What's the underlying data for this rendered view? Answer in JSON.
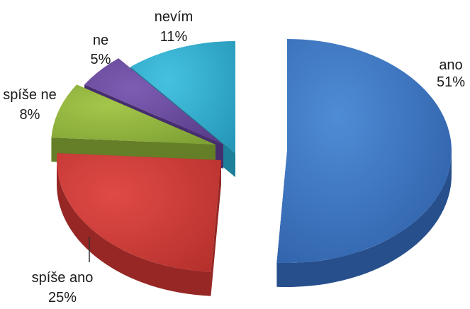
{
  "chart_data": {
    "type": "pie",
    "title": "",
    "series": [
      {
        "values": [
          51,
          25,
          8,
          5,
          11
        ]
      }
    ],
    "categories": [
      "ano",
      "spíše ano",
      "spíše ne",
      "ne",
      "nevím"
    ],
    "value_labels": [
      "51%",
      "25%",
      "8%",
      "5%",
      "11%"
    ],
    "colors": {
      "ano": "#3f75c0",
      "spíše ano": "#c83a38",
      "spíše ne": "#8eb23e",
      "ne": "#6a4a9c",
      "nevím": "#34b0d0"
    },
    "style": "3d-exploded"
  }
}
